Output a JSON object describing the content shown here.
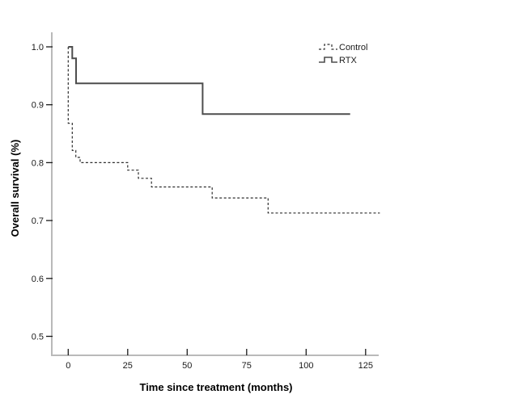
{
  "figure": {
    "background": "#ffffff",
    "axis_line_color": "#b9b9b9",
    "tick_color": "#1a1a1a",
    "text_color": "#000000"
  },
  "chart_data": {
    "type": "line",
    "subtype": "kaplan-meier-step",
    "title": "",
    "xlabel": "Time since treatment (months)",
    "ylabel": "Overall survival (%)",
    "xlim": [
      0,
      131
    ],
    "ylim": [
      0.5,
      1.0
    ],
    "grid": false,
    "legend_position": "upper-right",
    "x_ticks": [
      "0",
      "25",
      "50",
      "75",
      "100",
      "125"
    ],
    "y_ticks": [
      "1.0",
      "0.9",
      "0.8",
      "0.7",
      "0.6",
      "0.5"
    ],
    "series": [
      {
        "name": "Control",
        "style": "dashed",
        "color": "#2e2e2e",
        "points": [
          [
            0,
            1.0
          ],
          [
            0,
            0.868
          ],
          [
            1.7,
            0.868
          ],
          [
            1.7,
            0.821
          ],
          [
            3.2,
            0.821
          ],
          [
            3.2,
            0.809
          ],
          [
            5,
            0.809
          ],
          [
            5,
            0.8
          ],
          [
            25,
            0.8
          ],
          [
            25,
            0.787
          ],
          [
            29.5,
            0.787
          ],
          [
            29.5,
            0.773
          ],
          [
            35,
            0.773
          ],
          [
            35,
            0.758
          ],
          [
            60.5,
            0.758
          ],
          [
            60.5,
            0.739
          ],
          [
            84,
            0.739
          ],
          [
            84,
            0.713
          ],
          [
            131,
            0.713
          ]
        ]
      },
      {
        "name": "RTX",
        "style": "solid",
        "color": "#4d4d4d",
        "points": [
          [
            0,
            1.0
          ],
          [
            1.7,
            1.0
          ],
          [
            1.7,
            0.98
          ],
          [
            3.3,
            0.98
          ],
          [
            3.3,
            0.937
          ],
          [
            56.5,
            0.937
          ],
          [
            56.5,
            0.884
          ],
          [
            118.5,
            0.884
          ]
        ]
      }
    ]
  }
}
